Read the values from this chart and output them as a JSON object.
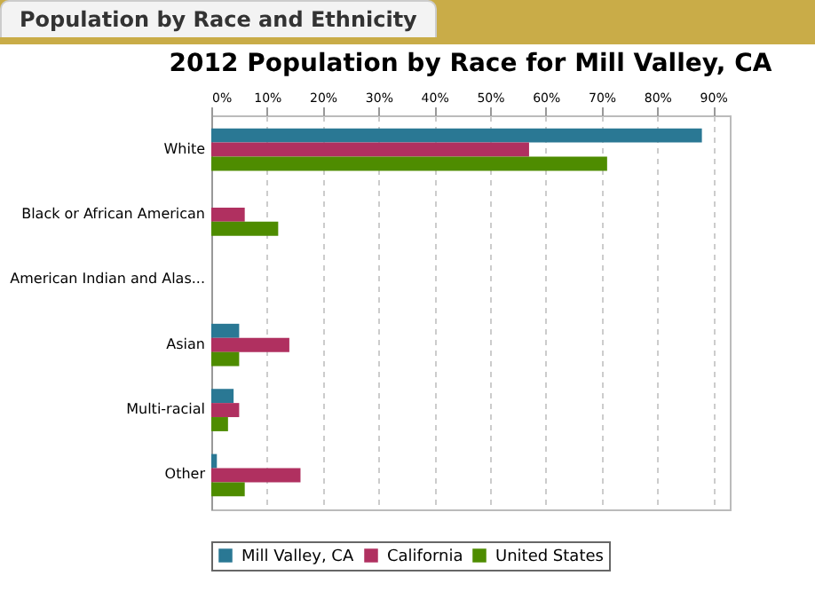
{
  "chart_data": {
    "type": "bar",
    "orientation": "horizontal",
    "title": "Population by Race and Ethnicity",
    "subtitle": "2012 Population by Race for Mill Valley, CA",
    "categories": [
      "White",
      "Black or African American",
      "American Indian and Alas...",
      "Asian",
      "Multi-racial",
      "Other"
    ],
    "series": [
      {
        "name": "Mill Valley, CA",
        "color": "#2a7894",
        "values": [
          88,
          0,
          0,
          5,
          4,
          1
        ]
      },
      {
        "name": "California",
        "color": "#b03060",
        "values": [
          57,
          6,
          0,
          14,
          5,
          16
        ]
      },
      {
        "name": "United States",
        "color": "#4e8c00",
        "values": [
          71,
          12,
          0,
          5,
          3,
          6
        ]
      }
    ],
    "xlim": [
      0,
      93
    ],
    "xticks": [
      {
        "value": 0,
        "label": "0%"
      },
      {
        "value": 10,
        "label": "10%"
      },
      {
        "value": 20,
        "label": "20%"
      },
      {
        "value": 30,
        "label": "30%"
      },
      {
        "value": 40,
        "label": "40%"
      },
      {
        "value": 50,
        "label": "50%"
      },
      {
        "value": 60,
        "label": "60%"
      },
      {
        "value": 70,
        "label": "70%"
      },
      {
        "value": 80,
        "label": "80%"
      },
      {
        "value": 90,
        "label": "90%"
      }
    ],
    "grid": true,
    "legend": "bottom"
  }
}
